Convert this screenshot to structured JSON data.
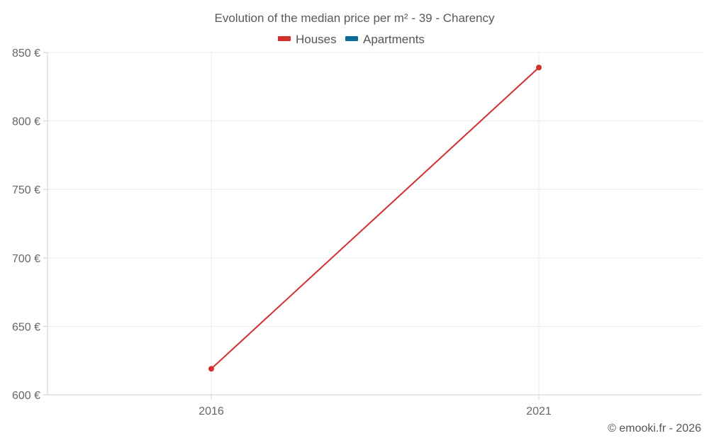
{
  "chart_data": {
    "type": "line",
    "title": "Evolution of the median price per m² - 39 - Charency",
    "categories": [
      "2016",
      "2021"
    ],
    "series": [
      {
        "name": "Houses",
        "color": "#d32f2f",
        "values": [
          619,
          839
        ]
      },
      {
        "name": "Apartments",
        "color": "#0b6a9a",
        "values": [
          null,
          null
        ]
      }
    ],
    "ylim": [
      600,
      850
    ],
    "yticks": [
      600,
      650,
      700,
      750,
      800,
      850
    ],
    "ytick_labels": [
      "600 €",
      "650 €",
      "700 €",
      "750 €",
      "800 €",
      "850 €"
    ],
    "xlabel": "",
    "ylabel": "",
    "grid": true,
    "legend": "top-center"
  },
  "credit": "© emooki.fr - 2026"
}
